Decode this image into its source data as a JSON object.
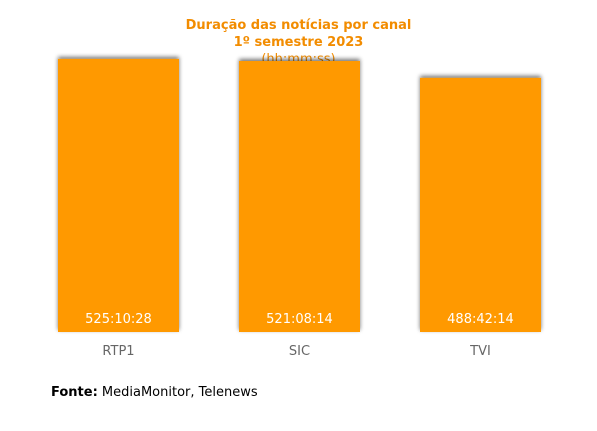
{
  "chart_data": {
    "type": "bar",
    "title": "Duração das notícias por canal",
    "subtitle": "1º semestre 2023",
    "units_label": "(hh:mm:ss)",
    "categories": [
      "RTP1",
      "SIC",
      "TVI"
    ],
    "values": [
      525.1744,
      521.1372,
      488.7039
    ],
    "data_labels": [
      "525:10:28",
      "521:08:14",
      "488:42:14"
    ],
    "ylim": [
      0,
      600
    ],
    "grid": false,
    "legend": "none",
    "bar_color": "#ff9900",
    "title_color": "#f28c00"
  },
  "footer": {
    "source_label": "Fonte:",
    "source_text": "MediaMonitor, Telenews"
  }
}
